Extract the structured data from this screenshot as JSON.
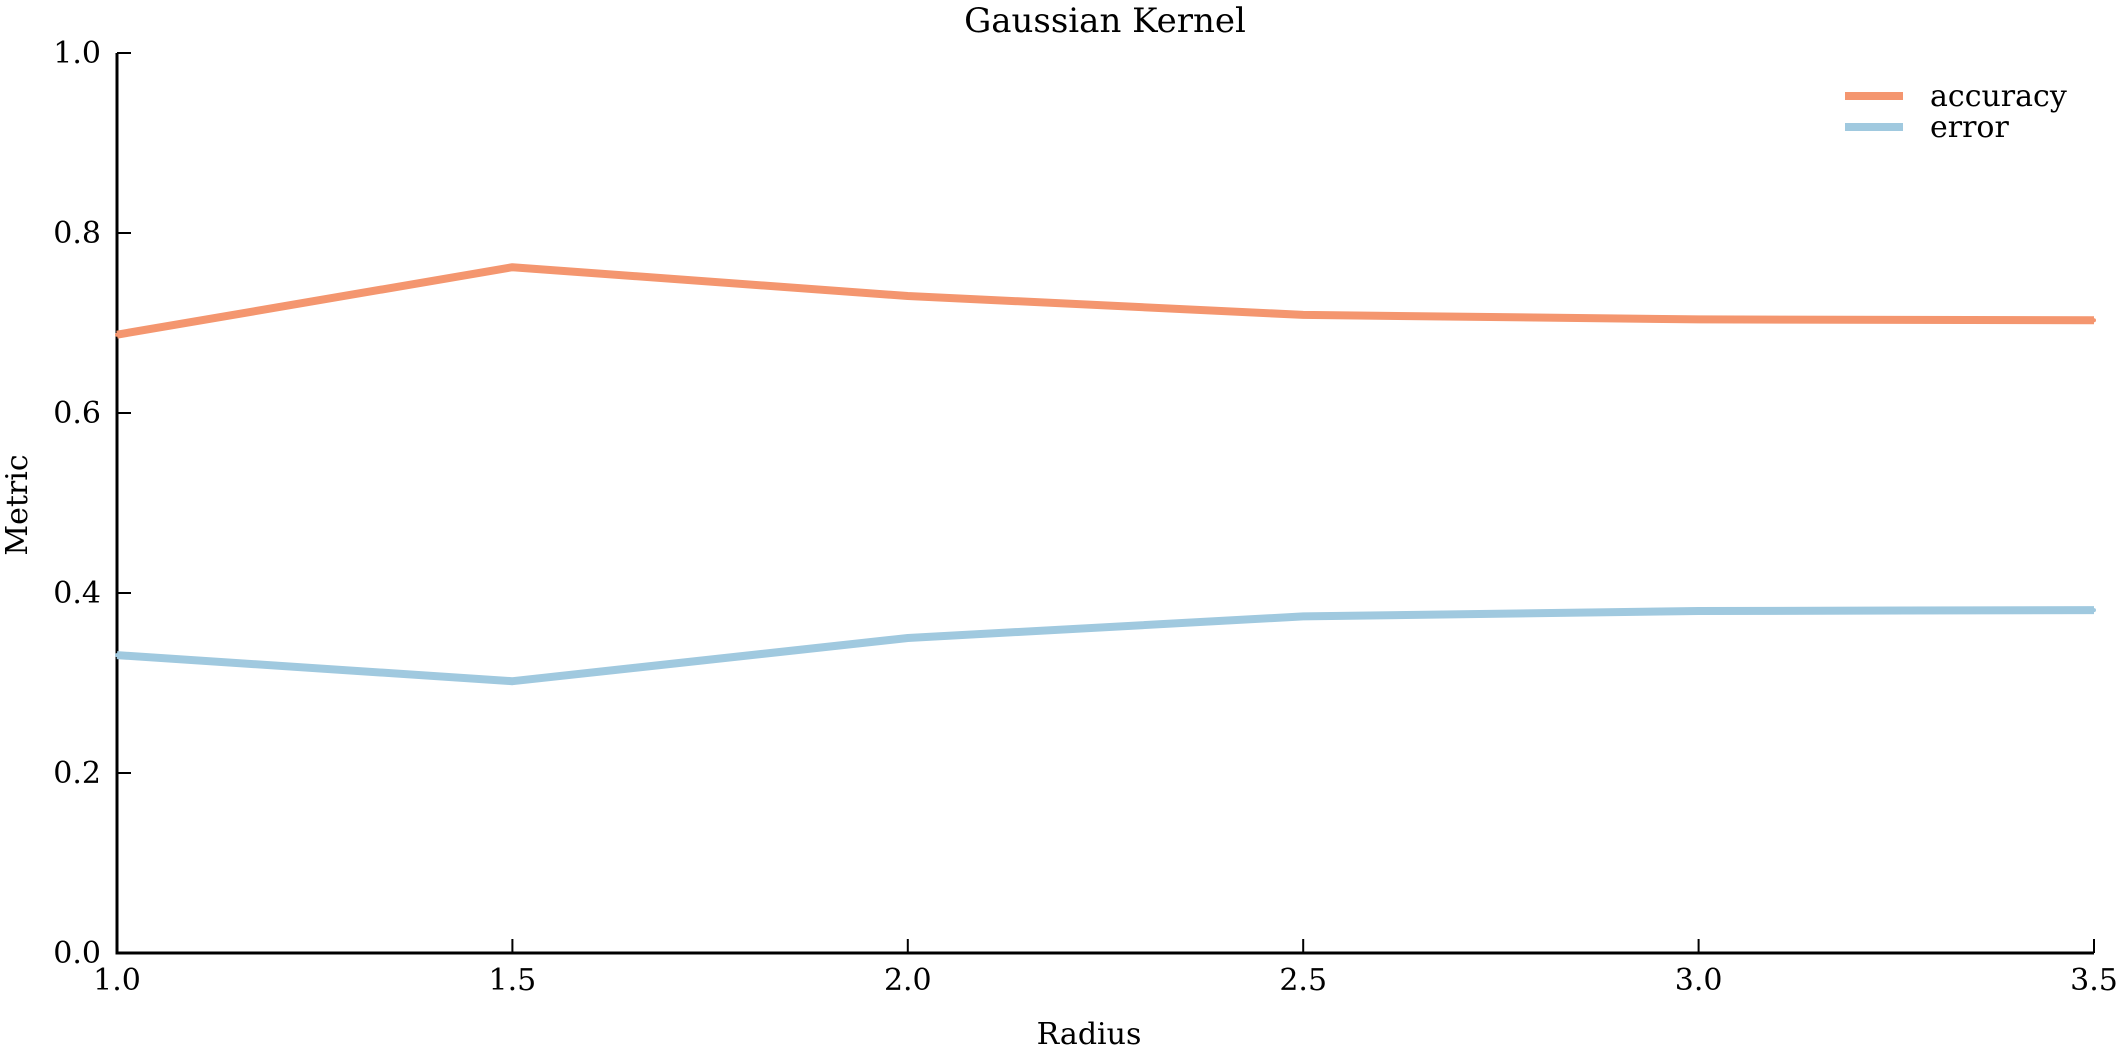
{
  "chart_data": {
    "type": "line",
    "title": "Gaussian Kernel",
    "xlabel": "Radius",
    "ylabel": "Metric",
    "x": [
      1.0,
      1.5,
      2.0,
      2.5,
      3.0,
      3.5
    ],
    "xlim": [
      1.0,
      3.5
    ],
    "ylim": [
      0.0,
      1.0
    ],
    "xticks": [
      "1.0",
      "1.5",
      "2.0",
      "2.5",
      "3.0",
      "3.5"
    ],
    "yticks": [
      "0.0",
      "0.2",
      "0.4",
      "0.6",
      "0.8",
      "1.0"
    ],
    "grid": false,
    "legend_position": "top-right",
    "series": [
      {
        "name": "accuracy",
        "color": "#F4966F",
        "values": [
          0.687,
          0.762,
          0.73,
          0.709,
          0.704,
          0.703
        ]
      },
      {
        "name": "error",
        "color": "#A0C9DF",
        "values": [
          0.331,
          0.302,
          0.35,
          0.374,
          0.38,
          0.381
        ]
      }
    ]
  }
}
